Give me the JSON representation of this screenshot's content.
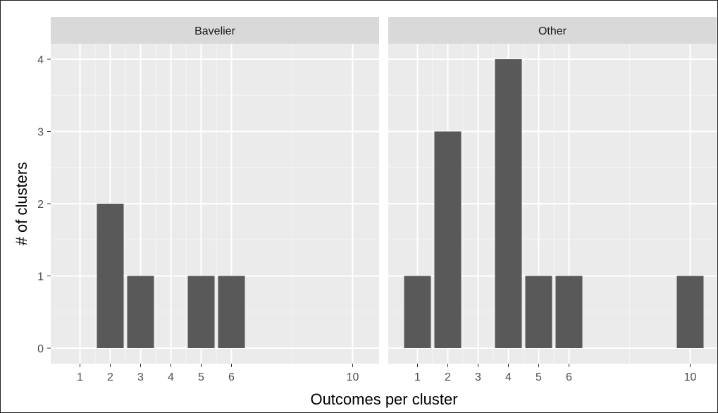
{
  "chart_data": {
    "type": "bar",
    "xlabel": "Outcomes per cluster",
    "ylabel": "# of clusters",
    "ylim": [
      0,
      4.4
    ],
    "yticks": [
      0,
      1,
      2,
      3,
      4
    ],
    "xlim": [
      0.1,
      10.9
    ],
    "xticks": [
      1,
      2,
      3,
      4,
      5,
      6,
      10
    ],
    "grid": true,
    "panels": [
      {
        "title": "Bavelier",
        "bars": [
          {
            "x": 2,
            "value": 2
          },
          {
            "x": 3,
            "value": 1
          },
          {
            "x": 5,
            "value": 1
          },
          {
            "x": 6,
            "value": 1
          }
        ]
      },
      {
        "title": "Other",
        "bars": [
          {
            "x": 1,
            "value": 1
          },
          {
            "x": 2,
            "value": 3
          },
          {
            "x": 4,
            "value": 4
          },
          {
            "x": 5,
            "value": 1
          },
          {
            "x": 6,
            "value": 1
          },
          {
            "x": 10,
            "value": 1
          }
        ]
      }
    ],
    "colors": {
      "bar": "#595959",
      "panel_bg": "#ebebeb",
      "strip_bg": "#d9d9d9",
      "grid_major": "#ffffff"
    }
  }
}
